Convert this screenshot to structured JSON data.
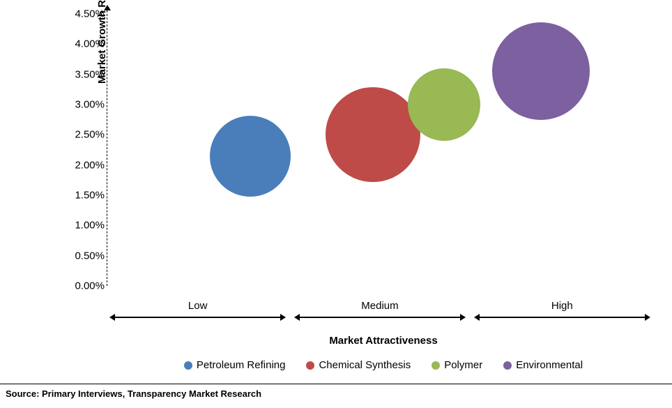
{
  "chart": {
    "type": "bubble",
    "y_axis": {
      "title": "Market Growth Rate (CAGR)",
      "min": 0.0,
      "max": 4.5,
      "tick_step": 0.5,
      "ticks": [
        "0.00%",
        "0.50%",
        "1.00%",
        "1.50%",
        "2.00%",
        "2.50%",
        "3.00%",
        "3.50%",
        "4.00%",
        "4.50%"
      ],
      "title_fontsize": 15,
      "tick_fontsize": 15,
      "axis_style": "dashed-arrow"
    },
    "x_axis": {
      "title": "Market Attractiveness",
      "segments": [
        {
          "label": "Low",
          "start": 0.0,
          "end": 0.33
        },
        {
          "label": "Medium",
          "start": 0.34,
          "end": 0.66
        },
        {
          "label": "High",
          "start": 0.67,
          "end": 1.0
        }
      ],
      "title_fontsize": 15,
      "label_fontsize": 15
    },
    "series": [
      {
        "name": "Petroleum Refining",
        "color": "#4a7ebb",
        "x": 0.28,
        "y": 2.15,
        "r": 58
      },
      {
        "name": "Chemical Synthesis",
        "color": "#be4b48",
        "x": 0.52,
        "y": 2.5,
        "r": 68
      },
      {
        "name": "Polymer",
        "color": "#98b954",
        "x": 0.66,
        "y": 3.0,
        "r": 52
      },
      {
        "name": "Environmental",
        "color": "#7d60a0",
        "x": 0.85,
        "y": 3.55,
        "r": 70
      }
    ],
    "background_color": "#ffffff",
    "legend_marker_size": 12,
    "legend_fontsize": 15
  },
  "source_text": "Source: Primary Interviews, Transparency Market Research"
}
